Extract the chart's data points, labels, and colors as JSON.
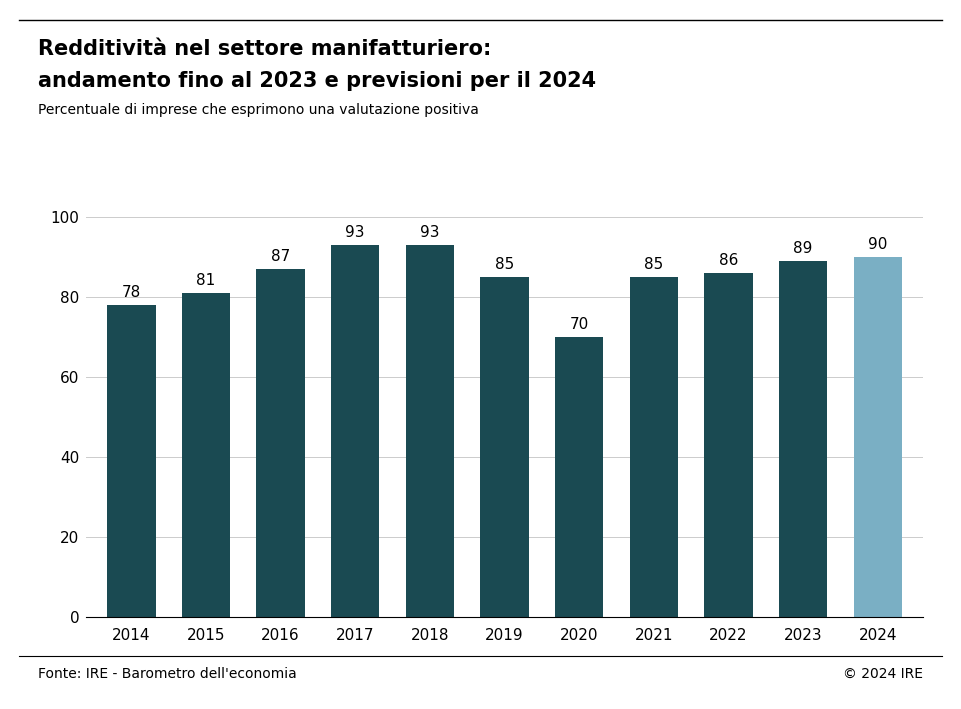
{
  "title_line1": "Redditività nel settore manifatturiero:",
  "title_line2": "andamento fino al 2023 e previsioni per il 2024",
  "subtitle": "Percentuale di imprese che esprimono una valutazione positiva",
  "source_left": "Fonte: IRE - Barometro dell'economia",
  "source_right": "© 2024 IRE",
  "years": [
    "2014",
    "2015",
    "2016",
    "2017",
    "2018",
    "2019",
    "2020",
    "2021",
    "2022",
    "2023",
    "2024"
  ],
  "values": [
    78,
    81,
    87,
    93,
    93,
    85,
    70,
    85,
    86,
    89,
    90
  ],
  "bar_colors": [
    "#1a4a52",
    "#1a4a52",
    "#1a4a52",
    "#1a4a52",
    "#1a4a52",
    "#1a4a52",
    "#1a4a52",
    "#1a4a52",
    "#1a4a52",
    "#1a4a52",
    "#7aafc4"
  ],
  "ylim": [
    0,
    110
  ],
  "yticks": [
    0,
    20,
    40,
    60,
    80,
    100
  ],
  "background_color": "#ffffff",
  "title_fontsize": 15,
  "subtitle_fontsize": 10,
  "bar_label_fontsize": 11,
  "axis_label_fontsize": 11,
  "source_fontsize": 10
}
